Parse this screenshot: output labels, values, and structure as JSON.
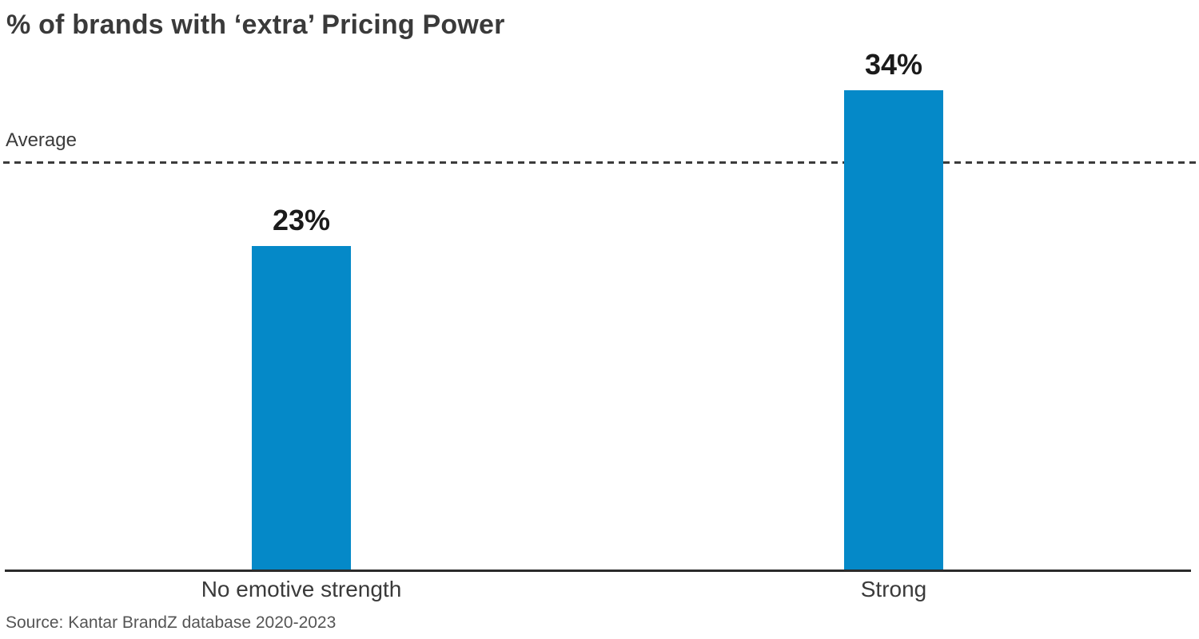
{
  "chart_data": {
    "type": "bar",
    "title": "% of brands with ‘extra’ Pricing Power",
    "categories": [
      "No emotive strength",
      "Strong"
    ],
    "values": [
      23,
      34
    ],
    "value_labels": [
      "23%",
      "34%"
    ],
    "series": [
      {
        "name": "% of brands with extra pricing power",
        "values": [
          23,
          34
        ]
      }
    ],
    "average_line": {
      "label": "Average",
      "value": 29,
      "style": "dashed"
    },
    "xlabel": "",
    "ylabel": "",
    "ylim": [
      0,
      40
    ],
    "grid": false,
    "legend": false,
    "bar_color": "#0589C8",
    "line_color": "#3b3b3b",
    "axis_color": "#2b2b2b",
    "source": "Source: Kantar BrandZ database 2020-2023"
  }
}
